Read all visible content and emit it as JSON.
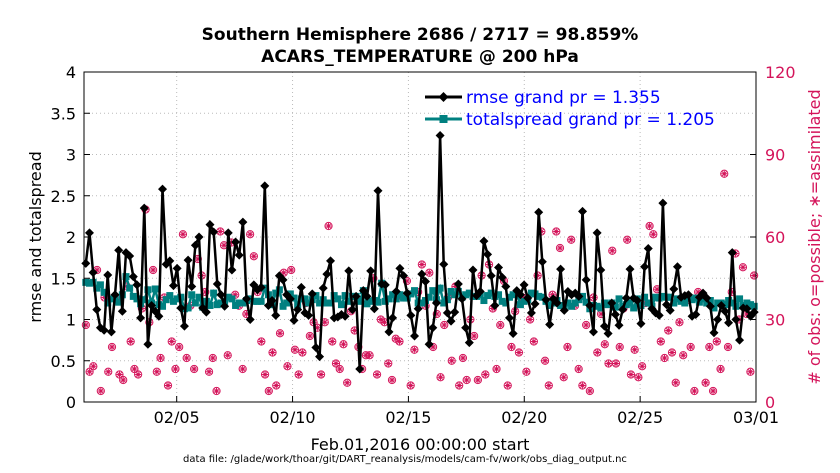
{
  "chart_data": {
    "type": "line",
    "title": "Southern Hemisphere 2686 / 2717 = 98.859%",
    "subtitle": "ACARS_TEMPERATURE @ 200 hPa",
    "xlabel": "Feb.01,2016 00:00:00 start",
    "ylabel": "rmse and totalspread",
    "y2label": "# of obs: o=possible; ∗=assimilated",
    "footnote": "data file: /glade/work/thoar/git/DART_reanalysis/models/cam-fv/work/obs_diag_output.nc",
    "xlim": [
      1.0,
      30.0
    ],
    "ylim": [
      0,
      4
    ],
    "y2lim": [
      0,
      120
    ],
    "xticks": [
      {
        "value": 5,
        "label": "02/05"
      },
      {
        "value": 10,
        "label": "02/10"
      },
      {
        "value": 15,
        "label": "02/15"
      },
      {
        "value": 20,
        "label": "02/20"
      },
      {
        "value": 25,
        "label": "02/25"
      },
      {
        "value": 30,
        "label": "03/01"
      }
    ],
    "yticks": [
      {
        "value": 0,
        "label": "0"
      },
      {
        "value": 0.5,
        "label": "0.5"
      },
      {
        "value": 1,
        "label": "1"
      },
      {
        "value": 1.5,
        "label": "1.5"
      },
      {
        "value": 2,
        "label": "2"
      },
      {
        "value": 2.5,
        "label": "2.5"
      },
      {
        "value": 3,
        "label": "3"
      },
      {
        "value": 3.5,
        "label": "3.5"
      },
      {
        "value": 4,
        "label": "4"
      }
    ],
    "y2ticks": [
      {
        "value": 0,
        "label": "0"
      },
      {
        "value": 30,
        "label": "30"
      },
      {
        "value": 60,
        "label": "60"
      },
      {
        "value": 90,
        "label": "90"
      },
      {
        "value": 120,
        "label": "120"
      }
    ],
    "grid": "dotted",
    "legend_position": "top-right",
    "colors": {
      "rmse": "#000000",
      "totalspread": "#008080",
      "obs": "#d4145a",
      "legend_text": "#0000ff"
    },
    "series": [
      {
        "name": "rmse grand pr = 1.355",
        "marker": "diamond",
        "values": [
          1.68,
          2.05,
          1.57,
          1.12,
          0.9,
          0.87,
          1.54,
          0.85,
          1.3,
          1.84,
          1.1,
          1.81,
          1.77,
          1.52,
          1.42,
          1.02,
          2.35,
          0.7,
          1.17,
          1.1,
          1.04,
          2.58,
          1.67,
          1.71,
          1.41,
          1.62,
          1.14,
          0.92,
          1.72,
          1.4,
          1.9,
          2.0,
          1.14,
          1.09,
          2.15,
          2.06,
          1.43,
          1.3,
          1.16,
          2.05,
          1.6,
          1.94,
          1.78,
          2.18,
          1.25,
          1.0,
          1.42,
          1.36,
          1.39,
          2.62,
          1.17,
          1.23,
          1.05,
          1.53,
          1.48,
          1.3,
          1.25,
          0.99,
          1.12,
          1.39,
          1.08,
          1.05,
          1.31,
          0.66,
          0.55,
          1.38,
          1.55,
          1.71,
          1.02,
          1.03,
          1.06,
          1.04,
          1.59,
          1.12,
          1.28,
          0.4,
          1.35,
          1.28,
          1.59,
          1.13,
          2.56,
          1.43,
          1.42,
          0.85,
          1.02,
          1.34,
          1.62,
          1.53,
          1.32,
          1.05,
          0.8,
          1.13,
          1.55,
          1.46,
          0.7,
          0.9,
          1.2,
          3.23,
          1.67,
          1.08,
          0.98,
          1.09,
          1.43,
          1.25,
          0.9,
          0.72,
          1.6,
          1.29,
          1.34,
          1.95,
          1.79,
          1.53,
          1.17,
          1.63,
          1.51,
          1.4,
          1.02,
          0.83,
          1.35,
          1.3,
          1.42,
          1.26,
          1.08,
          1.19,
          2.3,
          1.7,
          1.24,
          0.94,
          1.25,
          1.2,
          1.61,
          1.11,
          1.34,
          1.3,
          1.32,
          1.28,
          2.31,
          1.48,
          1.17,
          0.85,
          2.05,
          1.6,
          0.92,
          0.83,
          1.2,
          1.06,
          0.93,
          1.12,
          1.26,
          1.61,
          1.26,
          1.23,
          0.95,
          1.64,
          1.86,
          1.13,
          1.08,
          1.05,
          2.41,
          1.18,
          1.11,
          1.37,
          1.64,
          1.27,
          1.29,
          1.3,
          1.04,
          1.06,
          1.27,
          1.32,
          1.26,
          1.16,
          0.84,
          1.0,
          1.17,
          1.1,
          0.96,
          1.81,
          1.0,
          0.75,
          1.14,
          1.13,
          1.04,
          1.09
        ]
      },
      {
        "name": "totalspread grand pr = 1.205",
        "marker": "square",
        "values": [
          1.45,
          1.44,
          1.45,
          1.38,
          1.42,
          1.33,
          1.2,
          1.25,
          1.26,
          1.21,
          1.3,
          1.52,
          1.38,
          1.28,
          1.25,
          1.19,
          1.24,
          1.36,
          1.2,
          1.37,
          1.18,
          1.16,
          1.24,
          1.29,
          1.22,
          1.25,
          1.27,
          1.13,
          1.14,
          1.3,
          1.2,
          1.27,
          1.15,
          1.22,
          1.17,
          1.32,
          1.18,
          1.2,
          1.22,
          1.27,
          1.25,
          1.17,
          1.2,
          1.2,
          1.23,
          1.25,
          1.22,
          1.22,
          1.22,
          1.38,
          1.3,
          1.18,
          1.32,
          1.36,
          1.16,
          1.2,
          1.31,
          1.26,
          1.18,
          1.25,
          1.25,
          1.2,
          1.24,
          1.29,
          1.2,
          1.24,
          1.2,
          1.2,
          1.29,
          1.25,
          1.18,
          1.29,
          1.22,
          1.28,
          1.28,
          1.22,
          1.35,
          1.19,
          1.22,
          1.23,
          1.21,
          1.44,
          1.22,
          1.25,
          1.3,
          1.25,
          1.3,
          1.26,
          1.26,
          1.31,
          1.35,
          1.2,
          1.2,
          1.23,
          1.27,
          1.35,
          1.24,
          1.38,
          1.2,
          1.24,
          1.34,
          1.3,
          1.34,
          1.27,
          1.3,
          1.32,
          1.28,
          1.28,
          1.3,
          1.23,
          1.29,
          1.32,
          1.28,
          1.3,
          1.22,
          1.2,
          1.27,
          1.3,
          1.32,
          1.18,
          1.22,
          1.24,
          1.32,
          1.31,
          1.28,
          1.27,
          1.22,
          1.17,
          1.2,
          1.23,
          1.17,
          1.16,
          1.2,
          1.16,
          1.2,
          1.24,
          1.28,
          1.21,
          1.13,
          1.17,
          1.16,
          1.14,
          1.2,
          1.18,
          1.2,
          1.15,
          1.25,
          1.16,
          1.18,
          1.2,
          1.14,
          1.25,
          1.17,
          1.27,
          1.2,
          1.16,
          1.27,
          1.26,
          1.28,
          1.27,
          1.27,
          1.2,
          1.25,
          1.22,
          1.2,
          1.27,
          1.24,
          1.26,
          1.21,
          1.25,
          1.2,
          1.23,
          1.14,
          1.2,
          1.2,
          1.18,
          1.23,
          1.2,
          1.16,
          1.25,
          1.17,
          1.2,
          1.18,
          1.16
        ]
      }
    ],
    "obs_counts_sample": {
      "note_units": "# of obs",
      "values": [
        28,
        11,
        13,
        48,
        4,
        38,
        11,
        20,
        38,
        10,
        8,
        42,
        22,
        12,
        10,
        34,
        70,
        29,
        48,
        11,
        16,
        38,
        6,
        22,
        12,
        20,
        61,
        16,
        35,
        12,
        52,
        46,
        40,
        11,
        16,
        4,
        62,
        57,
        17,
        58,
        39,
        35,
        12,
        32,
        61,
        53,
        40,
        22,
        10,
        4,
        18,
        6,
        25,
        47,
        13,
        48,
        19,
        10,
        18,
        36,
        24,
        29,
        27,
        10,
        29,
        64,
        22,
        14,
        12,
        21,
        7,
        33,
        26,
        20,
        12,
        17,
        17,
        45,
        10,
        30,
        29,
        14,
        8,
        23,
        22,
        38,
        44,
        6,
        19,
        40,
        50,
        35,
        47,
        20,
        32,
        9,
        28,
        38,
        15,
        42,
        6,
        16,
        8,
        30,
        24,
        8,
        46,
        10,
        50,
        34,
        12,
        28,
        44,
        6,
        20,
        33,
        18,
        38,
        11,
        30,
        22,
        46,
        62,
        15,
        6,
        39,
        62,
        56,
        9,
        20,
        59,
        35,
        12,
        6,
        28,
        4,
        38,
        18,
        32,
        21,
        14,
        55,
        14,
        20,
        34,
        59,
        10,
        19,
        9,
        13,
        36,
        64,
        61,
        41,
        22,
        16,
        26,
        18,
        7,
        29,
        17,
        37,
        20,
        4,
        40,
        39,
        7,
        20,
        4,
        22,
        12,
        83,
        20,
        40,
        54,
        30,
        49,
        32,
        11,
        46
      ]
    }
  }
}
